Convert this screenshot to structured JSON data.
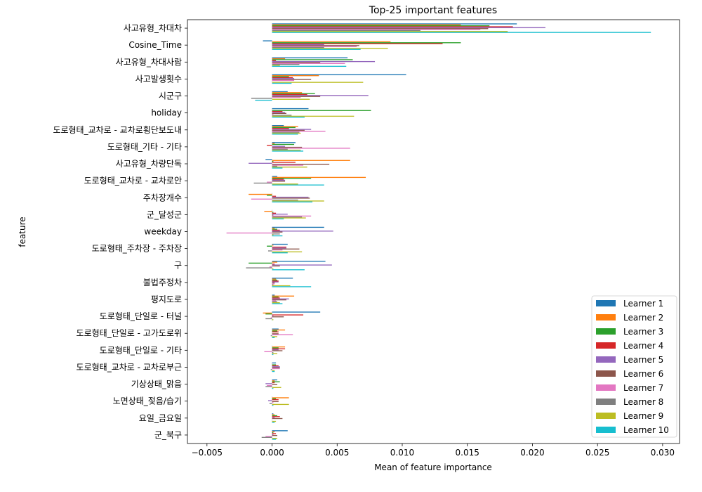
{
  "chart_data": {
    "type": "bar",
    "orientation": "horizontal",
    "title": "Top-25 important features",
    "xlabel": "Mean of feature importance",
    "ylabel": "feature",
    "xlim": [
      -0.0065,
      0.0313
    ],
    "xticks": [
      -0.005,
      0.0,
      0.005,
      0.01,
      0.015,
      0.02,
      0.025,
      0.03
    ],
    "xtick_labels": [
      "−0.005",
      "0.000",
      "0.005",
      "0.010",
      "0.015",
      "0.020",
      "0.025",
      "0.030"
    ],
    "grid": false,
    "legend_position": "lower-right",
    "categories": [
      "사고유형_차대차",
      "Cosine_Time",
      "사고유형_차대사람",
      "사고발생횟수",
      "시군구",
      "holiday",
      "도로형태_교차로 - 교차로횡단보도내",
      "도로형태_기타 - 기타",
      "사고유형_차량단독",
      "도로형태_교차로 - 교차로안",
      "주차장개수",
      "군_달성군",
      "weekday",
      "도로형태_주차장 - 주차장",
      "구",
      "불법주정차",
      "평지도로",
      "도로형태_단일로 - 터널",
      "도로형태_단일로 - 고가도로위",
      "도로형태_단일로 - 기타",
      "도로형태_교차로 - 교차로부근",
      "기상상태_맑음",
      "노면상태_젖음/습기",
      "요일_금요일",
      "군_북구"
    ],
    "series": [
      {
        "name": "Learner 1",
        "color": "#1f77b4",
        "values": [
          0.0188,
          -0.0007,
          0.0058,
          0.0103,
          0.0012,
          0.0028,
          0.0009,
          0.0018,
          -0.0005,
          0.0004,
          0.0,
          0.0,
          0.004,
          0.0012,
          0.0041,
          0.0016,
          0.0002,
          0.0037,
          0.0005,
          0.0,
          0.0003,
          0.0004,
          0.0,
          0.0001,
          0.0012
        ]
      },
      {
        "name": "Learner 2",
        "color": "#ff7f0e",
        "values": [
          0.0145,
          0.0091,
          0.001,
          0.0036,
          0.0023,
          0.0,
          0.002,
          0.0002,
          0.006,
          0.0072,
          -0.0018,
          -0.0006,
          0.0002,
          0.0001,
          0.0004,
          0.0003,
          0.0017,
          -0.0007,
          0.001,
          0.001,
          0.0,
          0.0002,
          0.0013,
          0.0002,
          0.0002
        ]
      },
      {
        "name": "Learner 3",
        "color": "#2ca02c",
        "values": [
          0.0167,
          0.0145,
          0.0062,
          0.0013,
          0.0033,
          0.0076,
          0.0018,
          0.0017,
          0.0001,
          0.003,
          -0.0004,
          0.0001,
          0.0004,
          -0.0004,
          -0.0018,
          0.0004,
          0.0005,
          -0.0005,
          0.0004,
          0.0005,
          0.0003,
          0.0006,
          0.0003,
          0.0004,
          0.0001
        ]
      },
      {
        "name": "Learner 4",
        "color": "#d62728",
        "values": [
          0.0185,
          0.0131,
          0.0003,
          0.0016,
          0.0027,
          0.0008,
          0.0013,
          -0.0004,
          0.0018,
          0.0009,
          0.0003,
          0.0003,
          0.0006,
          0.0011,
          0.0002,
          0.0005,
          0.0006,
          0.0024,
          0.0005,
          0.001,
          0.0005,
          0.0002,
          0.0005,
          0.0006,
          0.0003
        ]
      },
      {
        "name": "Learner 5",
        "color": "#9467bd",
        "values": [
          0.021,
          0.004,
          0.0079,
          0.0017,
          0.0074,
          0.001,
          0.003,
          0.001,
          -0.0018,
          0.001,
          0.0028,
          0.0012,
          0.0047,
          0.0011,
          0.0046,
          0.0005,
          0.0013,
          0.0001,
          0.0,
          0.0005,
          0.0006,
          -0.0005,
          -0.0003,
          0.0002,
          0.0001
        ]
      },
      {
        "name": "Learner 6",
        "color": "#8c564b",
        "values": [
          0.0166,
          0.0067,
          0.0037,
          0.003,
          0.0037,
          0.0011,
          0.0025,
          0.0023,
          0.0044,
          0.001,
          0.0029,
          0.0001,
          0.0008,
          0.0021,
          0.0006,
          0.0002,
          0.0011,
          0.0009,
          0.0005,
          0.0008,
          0.0006,
          0.0004,
          0.0005,
          0.0008,
          0.0004
        ]
      },
      {
        "name": "Learner 7",
        "color": "#e377c2",
        "values": [
          0.016,
          0.0065,
          0.0056,
          0.0017,
          0.0022,
          0.0001,
          0.0041,
          0.006,
          0.0024,
          -0.0004,
          -0.0016,
          0.003,
          -0.0035,
          0.0008,
          -0.0002,
          0.0002,
          0.0003,
          -0.0001,
          0.0016,
          -0.0006,
          0.0006,
          -0.0004,
          0.0001,
          0.0,
          -0.0005
        ]
      },
      {
        "name": "Learner 8",
        "color": "#7f7f7f",
        "values": [
          0.0114,
          0.004,
          0.0021,
          0.0,
          -0.0016,
          0.0015,
          0.0021,
          0.0012,
          0.0004,
          -0.0014,
          0.002,
          0.0023,
          0.0006,
          -0.0003,
          -0.002,
          0.0001,
          0.0004,
          -0.0005,
          -0.0001,
          0.0001,
          -0.0001,
          -0.0005,
          -0.0002,
          0.0,
          -0.0008
        ]
      },
      {
        "name": "Learner 9",
        "color": "#bcbd22",
        "values": [
          0.0181,
          0.0089,
          0.0006,
          0.007,
          0.0029,
          0.0063,
          0.0022,
          0.0022,
          0.0027,
          0.002,
          0.004,
          0.0026,
          0.0001,
          0.0023,
          0.0001,
          0.0014,
          0.0006,
          0.0001,
          0.0004,
          0.0004,
          0.0002,
          0.0007,
          0.0013,
          0.0003,
          0.0004
        ]
      },
      {
        "name": "Learner 10",
        "color": "#17becf",
        "values": [
          0.0291,
          0.0068,
          0.0057,
          0.0015,
          -0.0013,
          0.0025,
          0.002,
          0.0024,
          0.0008,
          0.004,
          0.0031,
          0.0009,
          0.0008,
          0.0012,
          0.0025,
          0.003,
          0.0008,
          0.0,
          0.0002,
          0.0001,
          0.0002,
          0.0001,
          0.0001,
          0.0002,
          0.0003
        ]
      }
    ]
  }
}
